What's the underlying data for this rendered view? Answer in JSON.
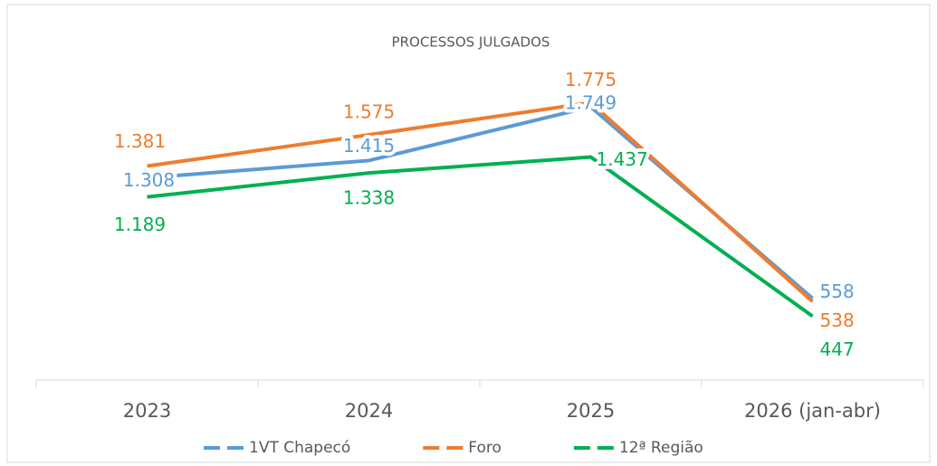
{
  "chart_data": {
    "type": "line",
    "title": "PROCESSOS JULGADOS",
    "categories": [
      "2023",
      "2024",
      "2025",
      "2026 (jan-abr)"
    ],
    "series": [
      {
        "name": "1VT Chapecó",
        "color": "#5b9bd5",
        "values": [
          1308,
          1415,
          1749,
          558
        ],
        "value_labels": [
          "1.308",
          "1.415",
          "1.749",
          "558"
        ]
      },
      {
        "name": "Foro",
        "color": "#ed7d31",
        "values": [
          1381,
          1575,
          1775,
          538
        ],
        "value_labels": [
          "1.381",
          "1.575",
          "1.775",
          "538"
        ]
      },
      {
        "name": "12ª Região",
        "color": "#00b050",
        "values": [
          1189,
          1338,
          1437,
          447
        ],
        "value_labels": [
          "1.189",
          "1.338",
          "1.437",
          "447"
        ]
      }
    ],
    "ylim": [
      50,
      2000
    ],
    "legend": "bottom"
  }
}
